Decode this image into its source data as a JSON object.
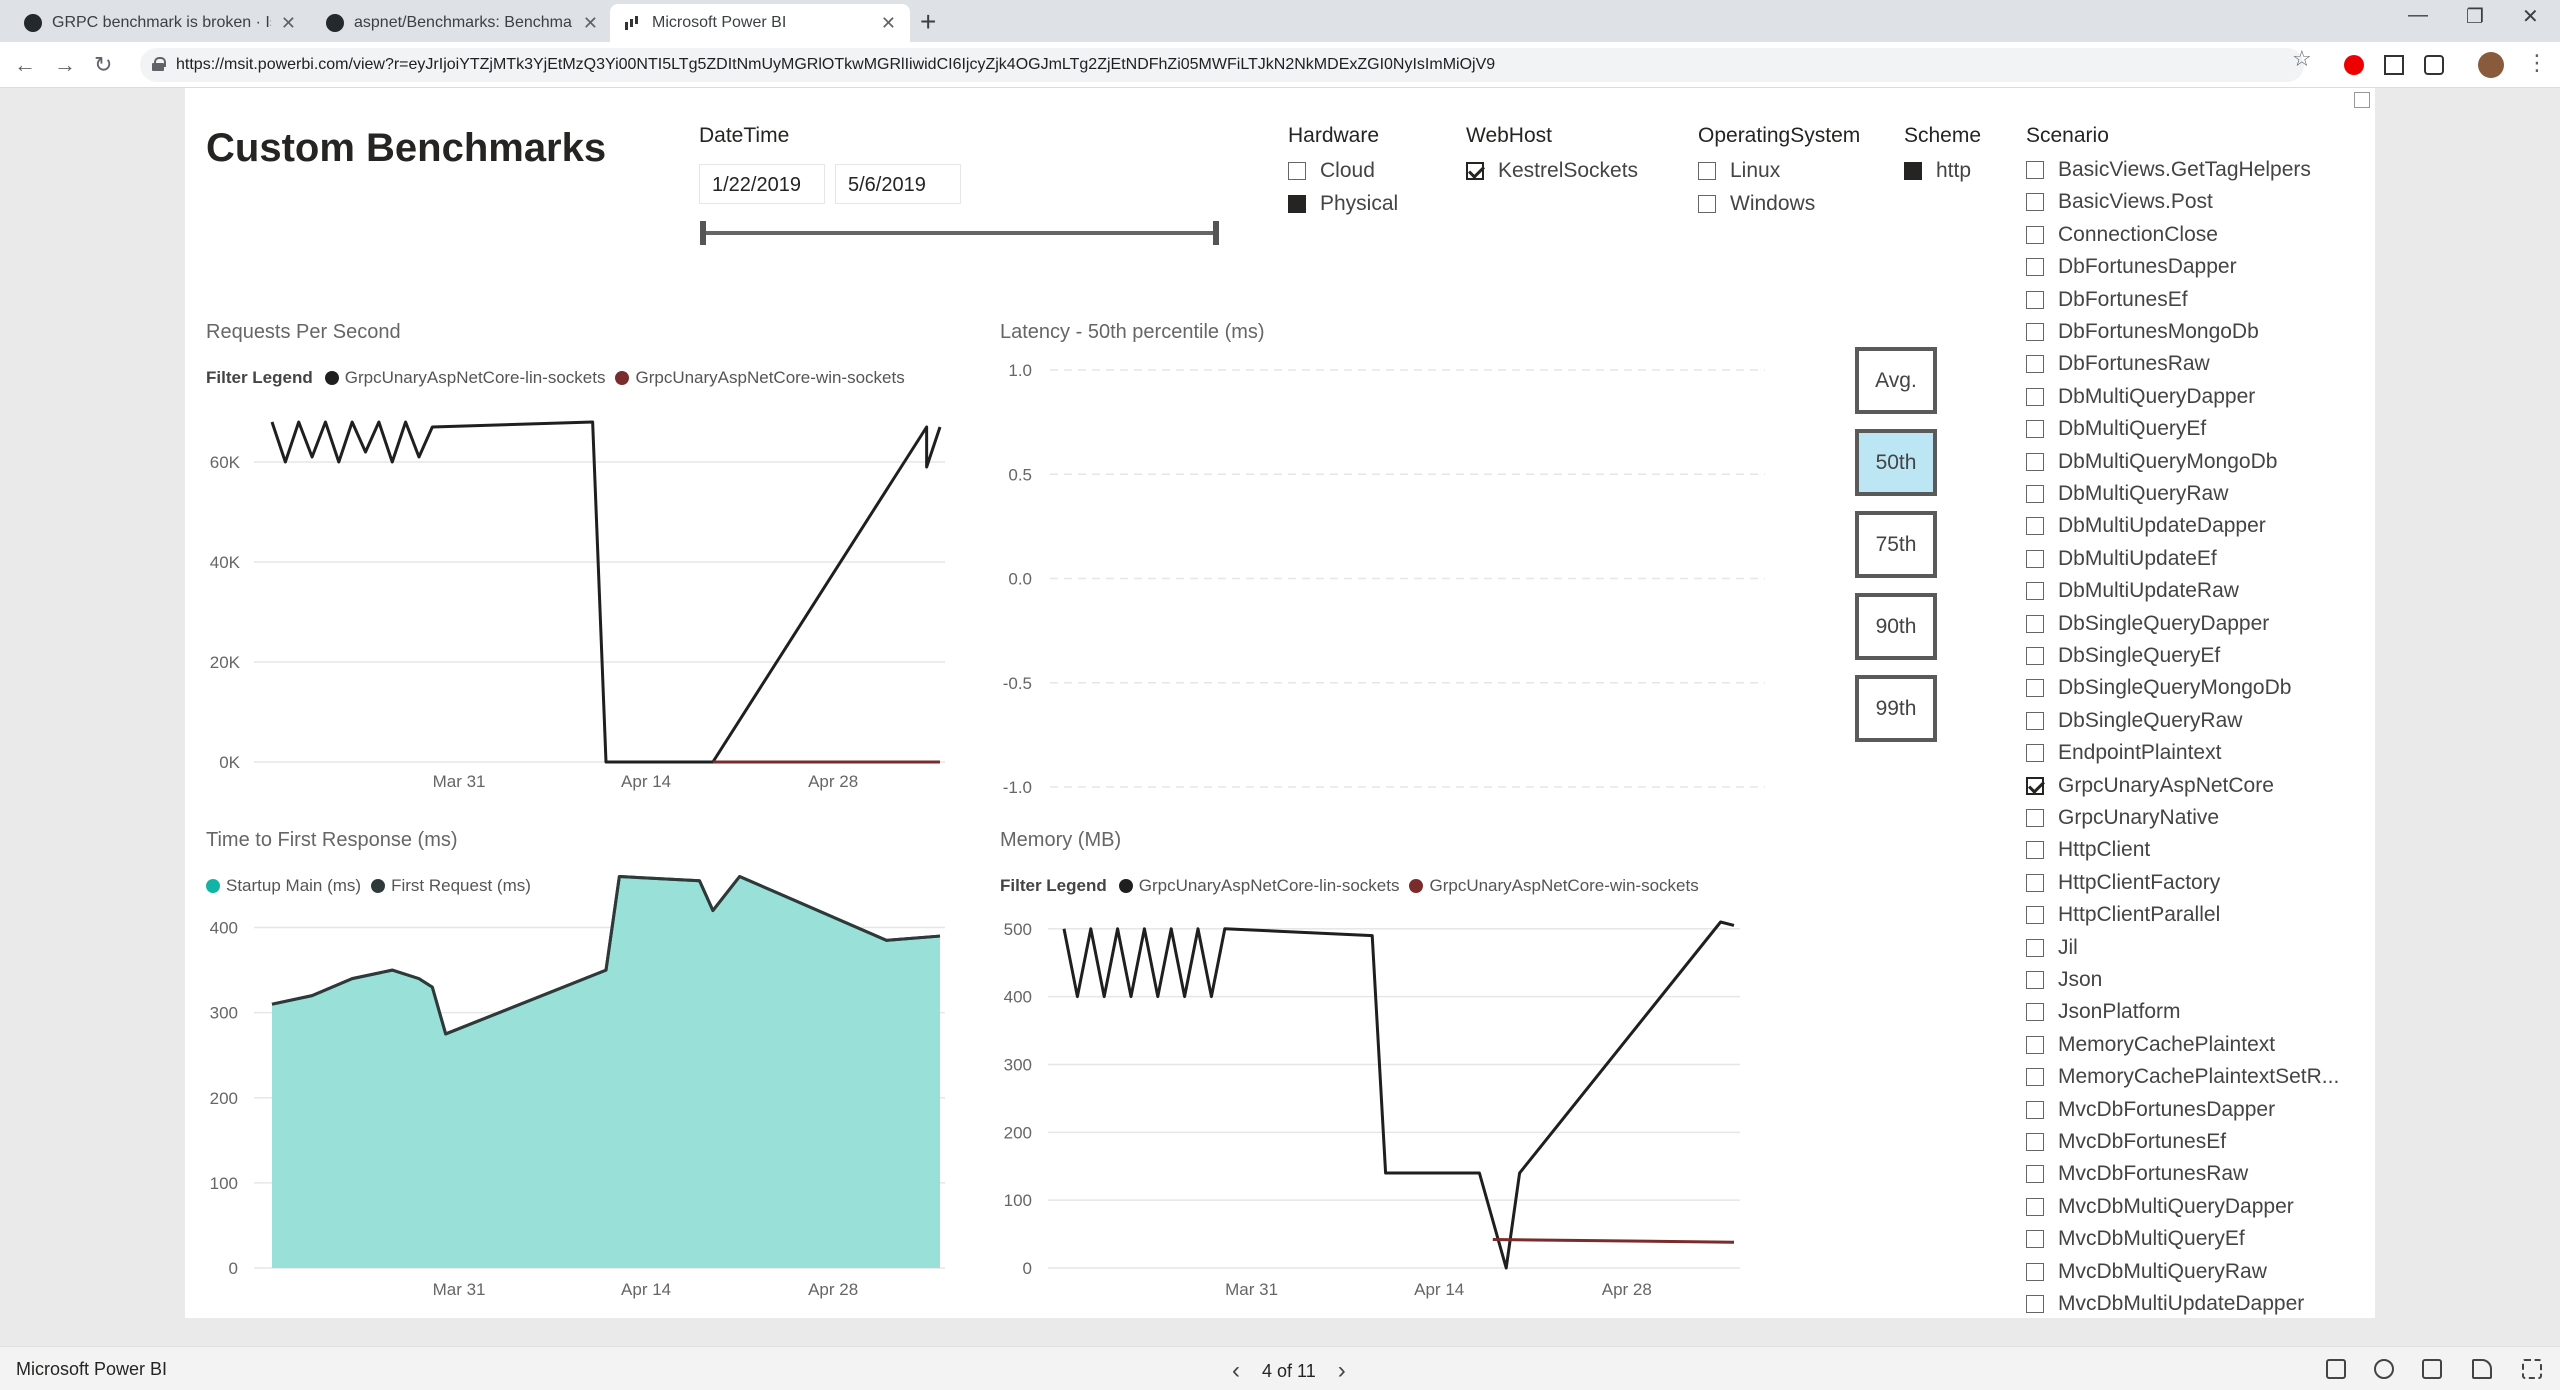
{
  "browser": {
    "tabs": [
      {
        "title": "GRPC benchmark is broken · Issue",
        "icon": "github-icon"
      },
      {
        "title": "aspnet/Benchmarks: Benchmarks",
        "icon": "github-icon"
      },
      {
        "title": "Microsoft Power BI",
        "icon": "powerbi-icon",
        "active": true
      }
    ],
    "url": "https://msit.powerbi.com/view?r=eyJrIjoiYTZjMTk3YjEtMzQ3Yi00NTI5LTg5ZDItNmUyMGRlOTkwMGRlIiwidCI6IjcyZjk4OGJmLTg2ZjEtNDFhZi05MWFiLTJkN2NkMDExZGI0NyIsImMiOjV9"
  },
  "report": {
    "title": "Custom Benchmarks",
    "datetime": {
      "label": "DateTime",
      "start": "1/22/2019",
      "end": "5/6/2019"
    },
    "hardware": {
      "label": "Hardware",
      "options": [
        {
          "label": "Cloud",
          "state": "unchecked"
        },
        {
          "label": "Physical",
          "state": "filled"
        }
      ]
    },
    "webhost": {
      "label": "WebHost",
      "options": [
        {
          "label": "KestrelSockets",
          "state": "checked"
        }
      ]
    },
    "os": {
      "label": "OperatingSystem",
      "options": [
        {
          "label": "Linux",
          "state": "unchecked"
        },
        {
          "label": "Windows",
          "state": "unchecked"
        }
      ]
    },
    "scheme": {
      "label": "Scheme",
      "options": [
        {
          "label": "http",
          "state": "filled"
        }
      ]
    },
    "scenario": {
      "label": "Scenario",
      "items": [
        "BasicViews.GetTagHelpers",
        "BasicViews.Post",
        "ConnectionClose",
        "DbFortunesDapper",
        "DbFortunesEf",
        "DbFortunesMongoDb",
        "DbFortunesRaw",
        "DbMultiQueryDapper",
        "DbMultiQueryEf",
        "DbMultiQueryMongoDb",
        "DbMultiQueryRaw",
        "DbMultiUpdateDapper",
        "DbMultiUpdateEf",
        "DbMultiUpdateRaw",
        "DbSingleQueryDapper",
        "DbSingleQueryEf",
        "DbSingleQueryMongoDb",
        "DbSingleQueryRaw",
        "EndpointPlaintext",
        "GrpcUnaryAspNetCore",
        "GrpcUnaryNative",
        "HttpClient",
        "HttpClientFactory",
        "HttpClientParallel",
        "Jil",
        "Json",
        "JsonPlatform",
        "MemoryCachePlaintext",
        "MemoryCachePlaintextSetR...",
        "MvcDbFortunesDapper",
        "MvcDbFortunesEf",
        "MvcDbFortunesRaw",
        "MvcDbMultiQueryDapper",
        "MvcDbMultiQueryEf",
        "MvcDbMultiQueryRaw",
        "MvcDbMultiUpdateDapper"
      ],
      "checked": "GrpcUnaryAspNetCore"
    },
    "percentile_buttons": [
      {
        "label": "Avg.",
        "active": false
      },
      {
        "label": "50th",
        "active": true
      },
      {
        "label": "75th",
        "active": false
      },
      {
        "label": "90th",
        "active": false
      },
      {
        "label": "99th",
        "active": false
      }
    ],
    "colors": {
      "lin": "#1f1f1f",
      "win": "#7a2b2b",
      "startup": "#12b5a5",
      "first": "#2e3a3a",
      "area_fill": "#99e0d8",
      "button_active": "#bde6f5"
    },
    "legend": {
      "filter_title": "Filter Legend",
      "lin": "GrpcUnaryAspNetCore-lin-sockets",
      "win": "GrpcUnaryAspNetCore-win-sockets",
      "startup": "Startup Main (ms)",
      "first": "First Request (ms)"
    }
  },
  "chart_data": [
    {
      "type": "line",
      "title": "Requests Per Second",
      "x_ticks": [
        "Mar 31",
        "Apr 14",
        "Apr 28"
      ],
      "ylim": [
        0,
        68000
      ],
      "y_ticks": [
        "0K",
        "20K",
        "40K",
        "60K"
      ],
      "series": [
        {
          "name": "GrpcUnaryAspNetCore-lin-sockets",
          "points": [
            [
              "Mar 17",
              68000
            ],
            [
              "Mar 18",
              60000
            ],
            [
              "Mar 19",
              68000
            ],
            [
              "Mar 20",
              61000
            ],
            [
              "Mar 21",
              68000
            ],
            [
              "Mar 22",
              60000
            ],
            [
              "Mar 23",
              68000
            ],
            [
              "Mar 24",
              62000
            ],
            [
              "Mar 25",
              68000
            ],
            [
              "Mar 26",
              60000
            ],
            [
              "Mar 27",
              68000
            ],
            [
              "Mar 28",
              61000
            ],
            [
              "Mar 29",
              67000
            ],
            [
              "Apr 10",
              68000
            ],
            [
              "Apr 11",
              0
            ],
            [
              "Apr 19",
              0
            ],
            [
              "May 5",
              67000
            ],
            [
              "May 5",
              59000
            ],
            [
              "May 6",
              67000
            ]
          ]
        },
        {
          "name": "GrpcUnaryAspNetCore-win-sockets",
          "points": [
            [
              "Apr 19",
              0
            ],
            [
              "May 6",
              0
            ]
          ]
        }
      ]
    },
    {
      "type": "line",
      "title": "Latency - 50th percentile (ms)",
      "ylim": [
        -1.0,
        1.0
      ],
      "y_ticks": [
        "1.0",
        "0.5",
        "0.0",
        "-0.5",
        "-1.0"
      ],
      "series": []
    },
    {
      "type": "area",
      "title": "Time to First Response (ms)",
      "x_ticks": [
        "Mar 31",
        "Apr 14",
        "Apr 28"
      ],
      "ylim": [
        0,
        450
      ],
      "y_ticks": [
        "0",
        "100",
        "200",
        "300",
        "400"
      ],
      "series": [
        {
          "name": "Startup Main (ms)",
          "points": [
            [
              "Mar 17",
              310
            ],
            [
              "Mar 20",
              320
            ],
            [
              "Mar 23",
              340
            ],
            [
              "Mar 26",
              350
            ],
            [
              "Mar 28",
              340
            ],
            [
              "Mar 29",
              330
            ],
            [
              "Mar 30",
              275
            ],
            [
              "Apr 11",
              350
            ],
            [
              "Apr 12",
              460
            ],
            [
              "Apr 18",
              455
            ],
            [
              "Apr 19",
              420
            ],
            [
              "Apr 21",
              460
            ],
            [
              "May 2",
              385
            ],
            [
              "May 6",
              390
            ]
          ]
        },
        {
          "name": "First Request (ms)",
          "points": [
            [
              "Mar 17",
              310
            ],
            [
              "Mar 20",
              320
            ],
            [
              "Mar 23",
              340
            ],
            [
              "Mar 26",
              350
            ],
            [
              "Mar 28",
              340
            ],
            [
              "Mar 29",
              330
            ],
            [
              "Mar 30",
              275
            ],
            [
              "Apr 11",
              350
            ],
            [
              "Apr 12",
              460
            ],
            [
              "Apr 18",
              455
            ],
            [
              "Apr 19",
              420
            ],
            [
              "Apr 21",
              460
            ],
            [
              "May 2",
              385
            ],
            [
              "May 6",
              390
            ]
          ]
        }
      ]
    },
    {
      "type": "line",
      "title": "Memory (MB)",
      "x_ticks": [
        "Mar 31",
        "Apr 14",
        "Apr 28"
      ],
      "ylim": [
        0,
        510
      ],
      "y_ticks": [
        "0",
        "100",
        "200",
        "300",
        "400",
        "500"
      ],
      "series": [
        {
          "name": "GrpcUnaryAspNetCore-lin-sockets",
          "points": [
            [
              "Mar 17",
              500
            ],
            [
              "Mar 18",
              400
            ],
            [
              "Mar 19",
              500
            ],
            [
              "Mar 20",
              400
            ],
            [
              "Mar 21",
              500
            ],
            [
              "Mar 22",
              400
            ],
            [
              "Mar 23",
              500
            ],
            [
              "Mar 24",
              400
            ],
            [
              "Mar 25",
              500
            ],
            [
              "Mar 26",
              400
            ],
            [
              "Mar 27",
              500
            ],
            [
              "Mar 28",
              400
            ],
            [
              "Mar 29",
              500
            ],
            [
              "Apr 9",
              490
            ],
            [
              "Apr 10",
              140
            ],
            [
              "Apr 17",
              140
            ],
            [
              "Apr 19",
              0
            ],
            [
              "Apr 20",
              140
            ],
            [
              "May 5",
              510
            ],
            [
              "May 6",
              505
            ]
          ]
        },
        {
          "name": "GrpcUnaryAspNetCore-win-sockets",
          "points": [
            [
              "Apr 18",
              42
            ],
            [
              "May 6",
              38
            ]
          ]
        }
      ]
    }
  ],
  "status": {
    "brand": "Microsoft Power BI",
    "page": "4 of 11"
  }
}
